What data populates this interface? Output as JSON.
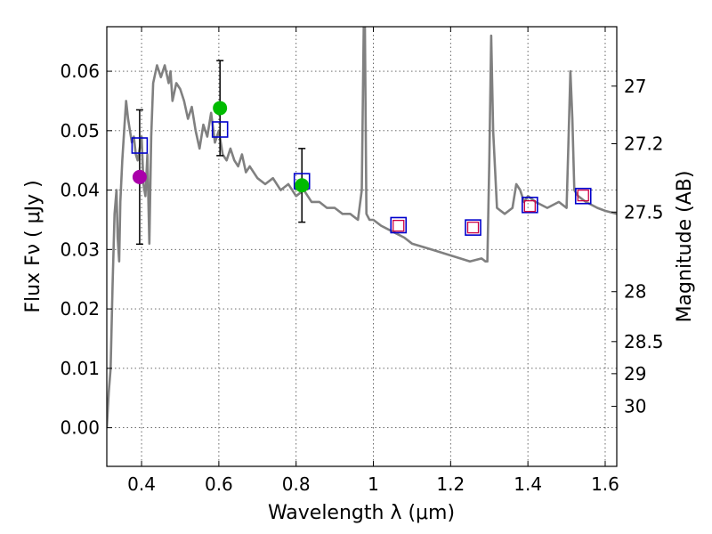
{
  "chart_data": {
    "type": "line",
    "xlabel": "Wavelength  λ (μm)",
    "ylabel": "Flux  Fν  ( μJy )",
    "ylabel_right": "Magnitude (AB)",
    "xlim": [
      0.31,
      1.63
    ],
    "ylim": [
      -0.0065,
      0.0675
    ],
    "x_ticks": [
      0.4,
      0.6,
      0.8,
      1.0,
      1.2,
      1.4,
      1.6
    ],
    "x_tick_labels": [
      "0.4",
      "0.6",
      "0.8",
      "1",
      "1.2",
      "1.4",
      "1.6"
    ],
    "y_ticks": [
      0.0,
      0.01,
      0.02,
      0.03,
      0.04,
      0.05,
      0.06
    ],
    "y_tick_labels": [
      "0.00",
      "0.01",
      "0.02",
      "0.03",
      "0.04",
      "0.05",
      "0.06"
    ],
    "right_ticks": [
      {
        "label": "27",
        "flux": 0.0575
      },
      {
        "label": "27.2",
        "flux": 0.0478
      },
      {
        "label": "27.5",
        "flux": 0.0363
      },
      {
        "label": "28",
        "flux": 0.0229
      },
      {
        "label": "28.5",
        "flux": 0.0145
      },
      {
        "label": "29",
        "flux": 0.0091
      },
      {
        "label": "30",
        "flux": 0.0036
      }
    ],
    "grid": true,
    "colors": {
      "model": "#808080",
      "model_points": "#0000cc",
      "observed_boxes": "#cc0044",
      "purple_point": "#aa00aa",
      "green_points": "#00bb00",
      "error_bars": "#000000"
    },
    "series": [
      {
        "kind": "spectrum",
        "x": [
          0.31,
          0.315,
          0.32,
          0.325,
          0.33,
          0.335,
          0.338,
          0.342,
          0.345,
          0.35,
          0.355,
          0.36,
          0.365,
          0.37,
          0.375,
          0.38,
          0.385,
          0.39,
          0.395,
          0.4,
          0.405,
          0.41,
          0.415,
          0.42,
          0.425,
          0.43,
          0.44,
          0.45,
          0.46,
          0.47,
          0.475,
          0.48,
          0.49,
          0.5,
          0.51,
          0.52,
          0.53,
          0.54,
          0.55,
          0.56,
          0.57,
          0.58,
          0.59,
          0.6,
          0.61,
          0.62,
          0.63,
          0.64,
          0.65,
          0.66,
          0.67,
          0.68,
          0.7,
          0.72,
          0.74,
          0.76,
          0.78,
          0.8,
          0.82,
          0.84,
          0.86,
          0.88,
          0.9,
          0.92,
          0.94,
          0.96,
          0.97,
          0.975,
          0.978,
          0.982,
          0.99,
          1.0,
          1.02,
          1.05,
          1.08,
          1.1,
          1.15,
          1.2,
          1.25,
          1.28,
          1.29,
          1.295,
          1.3,
          1.305,
          1.31,
          1.32,
          1.34,
          1.36,
          1.37,
          1.38,
          1.39,
          1.4,
          1.42,
          1.45,
          1.48,
          1.5,
          1.505,
          1.51,
          1.515,
          1.52,
          1.53,
          1.55,
          1.58,
          1.6,
          1.63
        ],
        "y": [
          0.0,
          0.006,
          0.01,
          0.024,
          0.036,
          0.04,
          0.032,
          0.028,
          0.038,
          0.045,
          0.05,
          0.055,
          0.052,
          0.05,
          0.048,
          0.049,
          0.046,
          0.045,
          0.047,
          0.049,
          0.041,
          0.039,
          0.046,
          0.031,
          0.049,
          0.058,
          0.061,
          0.059,
          0.061,
          0.058,
          0.06,
          0.055,
          0.058,
          0.057,
          0.055,
          0.052,
          0.054,
          0.05,
          0.047,
          0.051,
          0.049,
          0.053,
          0.048,
          0.05,
          0.046,
          0.045,
          0.047,
          0.045,
          0.044,
          0.046,
          0.043,
          0.044,
          0.042,
          0.041,
          0.042,
          0.04,
          0.041,
          0.039,
          0.04,
          0.038,
          0.038,
          0.037,
          0.037,
          0.036,
          0.036,
          0.035,
          0.04,
          0.0675,
          0.0675,
          0.036,
          0.035,
          0.035,
          0.034,
          0.033,
          0.032,
          0.031,
          0.03,
          0.029,
          0.028,
          0.0285,
          0.028,
          0.028,
          0.045,
          0.066,
          0.05,
          0.037,
          0.036,
          0.037,
          0.041,
          0.04,
          0.038,
          0.039,
          0.038,
          0.037,
          0.038,
          0.037,
          0.048,
          0.06,
          0.052,
          0.04,
          0.039,
          0.038,
          0.037,
          0.0365,
          0.036
        ]
      },
      {
        "kind": "model-points",
        "x": [
          0.395,
          0.603,
          0.815,
          1.065,
          1.258,
          1.405,
          1.543
        ],
        "y": [
          0.0475,
          0.0502,
          0.0415,
          0.0341,
          0.0337,
          0.0375,
          0.039
        ]
      },
      {
        "kind": "observed-boxes",
        "x": [
          1.065,
          1.258,
          1.405,
          1.543
        ],
        "y": [
          0.034,
          0.0337,
          0.0373,
          0.0391
        ]
      },
      {
        "kind": "purple-point",
        "x": [
          0.395
        ],
        "y": [
          0.0422
        ],
        "err": [
          0.0113
        ]
      },
      {
        "kind": "green-points",
        "x": [
          0.603,
          0.815
        ],
        "y": [
          0.0538,
          0.0408
        ],
        "err": [
          0.008,
          0.0062
        ]
      }
    ]
  }
}
